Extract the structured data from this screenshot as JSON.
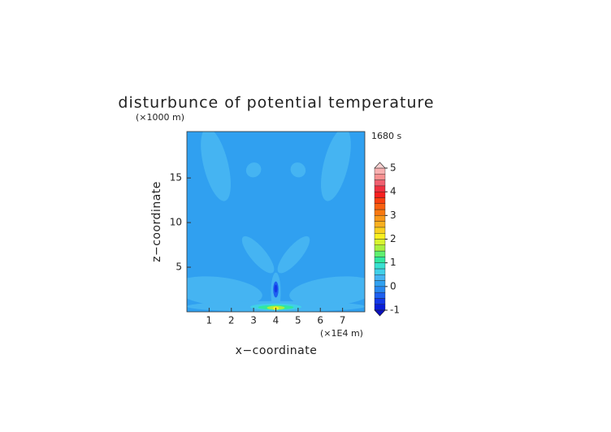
{
  "chart_data": {
    "type": "contour",
    "title": "disturbunce of potential temperature",
    "y_unit_label": "(×1000 m)",
    "x_unit_label": "(×1E4 m)",
    "time_label": "1680 s",
    "xlabel": "x−coordinate",
    "ylabel": "z−coordinate",
    "xlim": [
      0,
      8
    ],
    "ylim": [
      0,
      20.2
    ],
    "xticks": [
      1,
      2,
      3,
      4,
      5,
      6,
      7
    ],
    "yticks": [
      5,
      10,
      15
    ],
    "background_value": 0.1,
    "regions": [
      {
        "value": 0.3,
        "x": 1.3,
        "z": 16.5,
        "rx": 0.55,
        "rz": 4.2,
        "angle": -14
      },
      {
        "value": 0.3,
        "x": 6.7,
        "z": 16.5,
        "rx": 0.55,
        "rz": 4.2,
        "angle": 14
      },
      {
        "value": 0.3,
        "x": 3.0,
        "z": 15.9,
        "rx": 0.35,
        "rz": 0.8,
        "angle": -40
      },
      {
        "value": 0.3,
        "x": 5.0,
        "z": 15.9,
        "rx": 0.35,
        "rz": 0.8,
        "angle": 40
      },
      {
        "value": 0.3,
        "x": 3.2,
        "z": 6.4,
        "rx": 0.35,
        "rz": 2.6,
        "angle": -40
      },
      {
        "value": 0.3,
        "x": 4.8,
        "z": 6.4,
        "rx": 0.35,
        "rz": 2.6,
        "angle": 40
      },
      {
        "value": 0.3,
        "x": 1.4,
        "z": 2.3,
        "rx": 2.0,
        "rz": 1.6,
        "angle": 6
      },
      {
        "value": 0.3,
        "x": 6.6,
        "z": 2.3,
        "rx": 2.0,
        "rz": 1.6,
        "angle": -6
      },
      {
        "value": 0.3,
        "x": 4.0,
        "z": 0.6,
        "rx": 4.0,
        "rz": 0.6,
        "angle": 0
      },
      {
        "value": 0.3,
        "x": 4.0,
        "z": 2.2,
        "rx": 0.22,
        "rz": 2.2,
        "angle": 0
      },
      {
        "value": -0.3,
        "x": 4.0,
        "z": 2.5,
        "rx": 0.12,
        "rz": 0.9,
        "angle": 0
      },
      {
        "value": -0.6,
        "x": 4.0,
        "z": 2.6,
        "rx": 0.07,
        "rz": 0.45,
        "angle": 0
      },
      {
        "value": 0.6,
        "x": 4.0,
        "z": 0.55,
        "rx": 1.15,
        "rz": 0.38,
        "angle": 0
      },
      {
        "value": 1.1,
        "x": 4.0,
        "z": 0.5,
        "rx": 0.8,
        "rz": 0.26,
        "angle": 0
      },
      {
        "value": 1.6,
        "x": 4.0,
        "z": 0.45,
        "rx": 0.4,
        "rz": 0.22,
        "angle": 0
      },
      {
        "value": 2.1,
        "x": 4.0,
        "z": 0.4,
        "rx": 0.14,
        "rz": 0.18,
        "angle": 0
      }
    ],
    "colorbar": {
      "levels": [
        -1,
        -0.75,
        -0.5,
        -0.25,
        0,
        0.25,
        0.5,
        0.75,
        1,
        1.25,
        1.5,
        1.75,
        2,
        2.25,
        2.5,
        2.75,
        3,
        3.25,
        3.5,
        3.75,
        4,
        4.25,
        4.5,
        4.75,
        5
      ],
      "colors": [
        "#0a1ed8",
        "#1438e8",
        "#1e60f0",
        "#2888f0",
        "#30a0f0",
        "#45b4f2",
        "#40d0e8",
        "#38e0d0",
        "#30e8a0",
        "#60f070",
        "#a8f040",
        "#d8f430",
        "#f8f020",
        "#f8d020",
        "#f8b020",
        "#f89818",
        "#f87810",
        "#f86010",
        "#f84010",
        "#f82020",
        "#f03040",
        "#f06070",
        "#f89090",
        "#f8b0b0"
      ],
      "under_color": "#0a10c0",
      "over_color": "#f8d0d0",
      "ticks": [
        -1,
        0,
        1,
        2,
        3,
        4,
        5
      ]
    }
  }
}
